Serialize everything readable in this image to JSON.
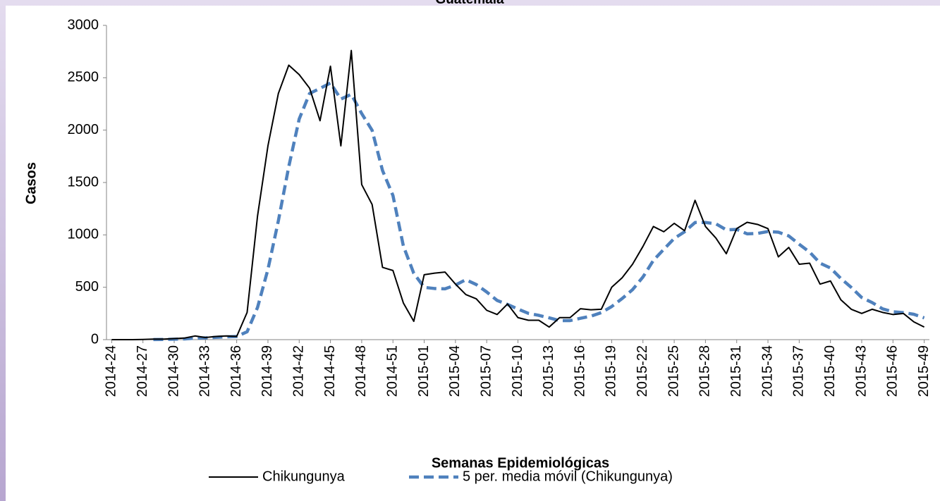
{
  "chart_data": {
    "type": "line",
    "title": "Guatemala",
    "x_label": "Semanas Epidemiológicas",
    "y_label": "Casos",
    "categories": [
      "2014-24",
      null,
      null,
      "2014-27",
      null,
      null,
      "2014-30",
      null,
      null,
      "2014-33",
      null,
      null,
      "2014-36",
      null,
      null,
      "2014-39",
      null,
      null,
      "2014-42",
      null,
      null,
      "2014-45",
      null,
      null,
      "2014-48",
      null,
      null,
      "2014-51",
      null,
      null,
      "2015-01",
      null,
      null,
      "2015-04",
      null,
      null,
      "2015-07",
      null,
      null,
      "2015-10",
      null,
      null,
      "2015-13",
      null,
      null,
      "2015-16",
      null,
      null,
      "2015-19",
      null,
      null,
      "2015-22",
      null,
      null,
      "2015-25",
      null,
      null,
      "2015-28",
      null,
      null,
      "2015-31",
      null,
      null,
      "2015-34",
      null,
      null,
      "2015-37",
      null,
      null,
      "2015-40",
      null,
      null,
      "2015-43",
      null,
      null,
      "2015-46",
      null,
      null,
      "2015-49"
    ],
    "series": [
      {
        "name": "Chikungunya",
        "color": "#000000",
        "dashed": false,
        "values": [
          0,
          0,
          0,
          2,
          5,
          5,
          10,
          15,
          35,
          20,
          30,
          35,
          30,
          260,
          1180,
          1850,
          2350,
          2620,
          2530,
          2400,
          2090,
          2610,
          1850,
          2760,
          1480,
          1290,
          690,
          660,
          350,
          175,
          620,
          635,
          645,
          530,
          430,
          390,
          280,
          240,
          340,
          210,
          185,
          185,
          120,
          210,
          210,
          295,
          285,
          290,
          500,
          590,
          720,
          890,
          1080,
          1030,
          1110,
          1040,
          1330,
          1080,
          970,
          820,
          1060,
          1120,
          1100,
          1060,
          790,
          880,
          720,
          730,
          530,
          560,
          380,
          290,
          250,
          290,
          260,
          240,
          250,
          170,
          120
        ]
      },
      {
        "name": "5 per. media móvil (Chikungunya)",
        "color": "#4f81bd",
        "dashed": true,
        "values": [
          null,
          null,
          null,
          null,
          1,
          2,
          4,
          7,
          14,
          17,
          22,
          27,
          30,
          75,
          307,
          671,
          1134,
          1652,
          2106,
          2350,
          2398,
          2450,
          2296,
          2342,
          2158,
          1998,
          1614,
          1376,
          894,
          633,
          499,
          488,
          485,
          521,
          572,
          526,
          455,
          374,
          336,
          292,
          251,
          232,
          208,
          182,
          182,
          204,
          224,
          258,
          316,
          392,
          477,
          598,
          756,
          862,
          966,
          1030,
          1118,
          1118,
          1106,
          1048,
          1052,
          1010,
          1014,
          1032,
          1026,
          990,
          910,
          836,
          730,
          684,
          584,
          498,
          402,
          354,
          294,
          266,
          258,
          242,
          208
        ]
      }
    ],
    "ylim": [
      0,
      3000
    ],
    "yticks": [
      0,
      500,
      1000,
      1500,
      2000,
      2500,
      3000
    ],
    "grid": false
  }
}
